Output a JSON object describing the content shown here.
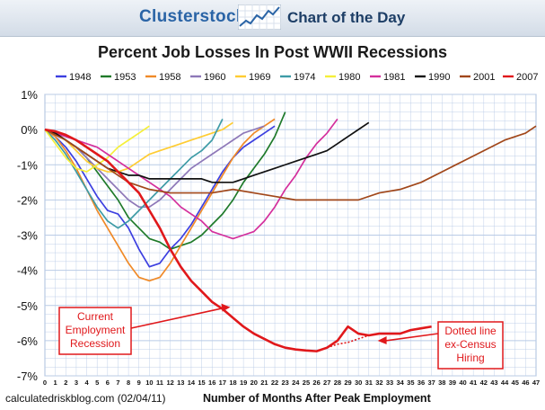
{
  "header": {
    "brand": "Clusterstock",
    "section": "Chart of the Day"
  },
  "footer": {
    "source": "calculatedriskblog.com (02/04/11)"
  },
  "colors": {
    "banner_text": "#2a64a6",
    "grid": "#b9cbe6",
    "annotation": "#e0181b"
  },
  "chart_data": {
    "type": "line",
    "title": "Percent Job Losses In Post WWII Recessions",
    "xlabel": "Number of Months After Peak Employment",
    "ylabel": "",
    "xlim": [
      0,
      47
    ],
    "ylim": [
      -7,
      1
    ],
    "yticks": [
      1,
      0,
      -1,
      -2,
      -3,
      -4,
      -5,
      -6,
      -7
    ],
    "ytick_labels": [
      "1%",
      "0%",
      "-1%",
      "-2%",
      "-3%",
      "-4%",
      "-5%",
      "-6%",
      "-7%"
    ],
    "xticks": [
      0,
      1,
      2,
      3,
      4,
      5,
      6,
      7,
      8,
      9,
      10,
      11,
      12,
      13,
      14,
      15,
      16,
      17,
      18,
      19,
      20,
      21,
      22,
      23,
      24,
      25,
      26,
      27,
      28,
      29,
      30,
      31,
      32,
      33,
      34,
      35,
      36,
      37,
      38,
      39,
      40,
      41,
      42,
      43,
      44,
      45,
      46,
      47
    ],
    "legend_position": "top",
    "series": [
      {
        "name": "1948",
        "color": "#3c3fe0",
        "x": [
          0,
          1,
          2,
          3,
          4,
          5,
          6,
          7,
          8,
          9,
          10,
          11,
          12,
          13,
          14,
          15,
          16,
          17,
          18,
          19,
          20,
          21,
          22
        ],
        "values": [
          0,
          -0.2,
          -0.5,
          -0.9,
          -1.4,
          -1.9,
          -2.3,
          -2.4,
          -2.8,
          -3.4,
          -3.9,
          -3.8,
          -3.4,
          -3.1,
          -2.7,
          -2.2,
          -1.7,
          -1.2,
          -0.8,
          -0.5,
          -0.3,
          -0.1,
          0.1
        ]
      },
      {
        "name": "1953",
        "color": "#1f7a2a",
        "x": [
          0,
          1,
          2,
          3,
          4,
          5,
          6,
          7,
          8,
          9,
          10,
          11,
          12,
          13,
          14,
          15,
          16,
          17,
          18,
          19,
          20,
          21,
          22,
          23
        ],
        "values": [
          0,
          -0.1,
          -0.3,
          -0.5,
          -0.8,
          -1.2,
          -1.6,
          -2.0,
          -2.5,
          -2.8,
          -3.1,
          -3.2,
          -3.4,
          -3.3,
          -3.2,
          -3.0,
          -2.7,
          -2.4,
          -2.0,
          -1.5,
          -1.1,
          -0.7,
          -0.2,
          0.5
        ]
      },
      {
        "name": "1958",
        "color": "#f08a28",
        "x": [
          0,
          1,
          2,
          3,
          4,
          5,
          6,
          7,
          8,
          9,
          10,
          11,
          12,
          13,
          14,
          15,
          16,
          17,
          18,
          19,
          20,
          21,
          22
        ],
        "values": [
          0,
          -0.2,
          -0.6,
          -1.1,
          -1.7,
          -2.3,
          -2.8,
          -3.3,
          -3.8,
          -4.2,
          -4.3,
          -4.2,
          -3.8,
          -3.3,
          -2.8,
          -2.3,
          -1.8,
          -1.3,
          -0.8,
          -0.4,
          -0.1,
          0.1,
          0.3
        ]
      },
      {
        "name": "1960",
        "color": "#8e78b8",
        "x": [
          0,
          1,
          2,
          3,
          4,
          5,
          6,
          7,
          8,
          9,
          10,
          11,
          12,
          13,
          14,
          15,
          16,
          17,
          18,
          19,
          20,
          21
        ],
        "values": [
          0,
          -0.1,
          -0.3,
          -0.5,
          -0.8,
          -1.1,
          -1.4,
          -1.7,
          -2.0,
          -2.2,
          -2.2,
          -2.0,
          -1.7,
          -1.4,
          -1.1,
          -0.9,
          -0.7,
          -0.5,
          -0.3,
          -0.1,
          0.0,
          0.1
        ]
      },
      {
        "name": "1969",
        "color": "#ffcc33",
        "x": [
          0,
          1,
          2,
          3,
          4,
          5,
          6,
          7,
          8,
          9,
          10,
          11,
          12,
          13,
          14,
          15,
          16,
          17,
          18
        ],
        "values": [
          0,
          -0.1,
          -0.3,
          -0.6,
          -0.9,
          -1.1,
          -1.2,
          -1.2,
          -1.1,
          -0.9,
          -0.7,
          -0.6,
          -0.5,
          -0.4,
          -0.3,
          -0.2,
          -0.1,
          0.0,
          0.2
        ]
      },
      {
        "name": "1974",
        "color": "#3e9ba6",
        "x": [
          0,
          1,
          2,
          3,
          4,
          5,
          6,
          7,
          8,
          9,
          10,
          11,
          12,
          13,
          14,
          15,
          16,
          17
        ],
        "values": [
          0,
          -0.3,
          -0.7,
          -1.2,
          -1.7,
          -2.2,
          -2.6,
          -2.8,
          -2.6,
          -2.3,
          -2.0,
          -1.7,
          -1.4,
          -1.1,
          -0.8,
          -0.6,
          -0.3,
          0.3
        ]
      },
      {
        "name": "1980",
        "color": "#f5ef3a",
        "x": [
          0,
          1,
          2,
          3,
          4,
          5,
          6,
          7,
          8,
          9,
          10
        ],
        "values": [
          0,
          -0.4,
          -0.8,
          -1.1,
          -1.2,
          -1.0,
          -0.8,
          -0.5,
          -0.3,
          -0.1,
          0.1
        ]
      },
      {
        "name": "1981",
        "color": "#d42f9c",
        "x": [
          0,
          1,
          2,
          3,
          4,
          5,
          6,
          7,
          8,
          9,
          10,
          11,
          12,
          13,
          14,
          15,
          16,
          17,
          18,
          19,
          20,
          21,
          22,
          23,
          24,
          25,
          26,
          27,
          28
        ],
        "values": [
          0,
          -0.1,
          -0.2,
          -0.3,
          -0.4,
          -0.5,
          -0.7,
          -0.9,
          -1.1,
          -1.3,
          -1.5,
          -1.7,
          -1.9,
          -2.2,
          -2.4,
          -2.6,
          -2.9,
          -3.0,
          -3.1,
          -3.0,
          -2.9,
          -2.6,
          -2.2,
          -1.7,
          -1.3,
          -0.8,
          -0.4,
          -0.1,
          0.3
        ]
      },
      {
        "name": "1990",
        "color": "#111111",
        "x": [
          0,
          1,
          2,
          3,
          4,
          5,
          6,
          7,
          8,
          9,
          10,
          11,
          12,
          13,
          14,
          15,
          16,
          17,
          18,
          19,
          20,
          21,
          22,
          23,
          24,
          25,
          26,
          27,
          28,
          29,
          30,
          31
        ],
        "values": [
          0,
          -0.1,
          -0.3,
          -0.5,
          -0.7,
          -0.9,
          -1.1,
          -1.2,
          -1.3,
          -1.3,
          -1.4,
          -1.4,
          -1.4,
          -1.4,
          -1.4,
          -1.4,
          -1.5,
          -1.5,
          -1.5,
          -1.4,
          -1.3,
          -1.2,
          -1.1,
          -1.0,
          -0.9,
          -0.8,
          -0.7,
          -0.6,
          -0.4,
          -0.2,
          0.0,
          0.2
        ]
      },
      {
        "name": "2001",
        "color": "#a1471a",
        "x": [
          0,
          2,
          4,
          6,
          8,
          10,
          12,
          14,
          16,
          18,
          20,
          22,
          24,
          26,
          28,
          30,
          32,
          34,
          36,
          38,
          40,
          42,
          44,
          46,
          47
        ],
        "values": [
          0,
          -0.3,
          -0.7,
          -1.1,
          -1.5,
          -1.7,
          -1.8,
          -1.8,
          -1.8,
          -1.7,
          -1.8,
          -1.9,
          -2.0,
          -2.0,
          -2.0,
          -2.0,
          -1.8,
          -1.7,
          -1.5,
          -1.2,
          -0.9,
          -0.6,
          -0.3,
          -0.1,
          0.1
        ]
      },
      {
        "name": "2007",
        "color": "#e0181b",
        "x": [
          0,
          1,
          2,
          3,
          4,
          5,
          6,
          7,
          8,
          9,
          10,
          11,
          12,
          13,
          14,
          15,
          16,
          17,
          18,
          19,
          20,
          21,
          22,
          23,
          24,
          25,
          26,
          27,
          28,
          29,
          30,
          31,
          32,
          33,
          34,
          35,
          36,
          37
        ],
        "values": [
          0,
          -0.05,
          -0.15,
          -0.3,
          -0.5,
          -0.7,
          -0.9,
          -1.2,
          -1.5,
          -1.8,
          -2.3,
          -2.8,
          -3.4,
          -3.9,
          -4.3,
          -4.6,
          -4.9,
          -5.1,
          -5.35,
          -5.6,
          -5.8,
          -5.95,
          -6.1,
          -6.2,
          -6.25,
          -6.28,
          -6.3,
          -6.2,
          -6.0,
          -5.6,
          -5.8,
          -5.85,
          -5.8,
          -5.8,
          -5.8,
          -5.7,
          -5.65,
          -5.6
        ]
      }
    ],
    "dotted_line": {
      "name": "2007 ex-Census",
      "color": "#e0181b",
      "x": [
        27,
        28,
        29,
        30,
        31
      ],
      "values": [
        -6.2,
        -6.1,
        -6.05,
        -5.95,
        -5.85
      ]
    },
    "annotations": [
      {
        "id": "current",
        "lines": [
          "Current",
          "Employment",
          "Recession"
        ],
        "arrow_to": [
          18,
          -5.1
        ]
      },
      {
        "id": "dotted",
        "lines": [
          "Dotted line",
          "ex-Census",
          "Hiring"
        ],
        "arrow_to": [
          31.5,
          -5.9
        ]
      }
    ]
  }
}
